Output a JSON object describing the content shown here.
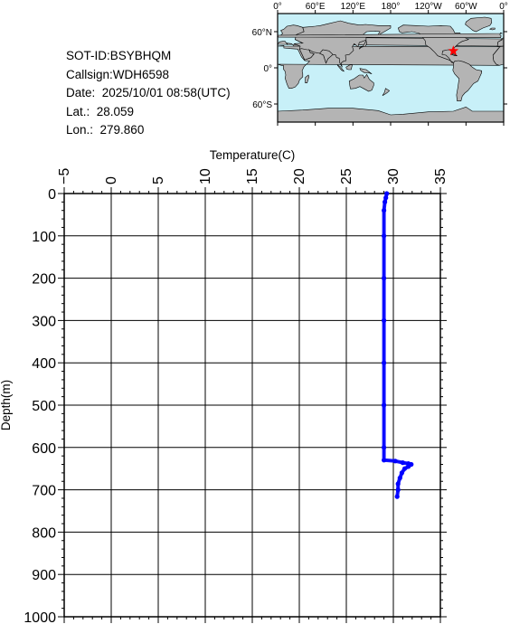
{
  "info": {
    "sot_id": "SOT-ID:BSYBHQM",
    "callsign": "Callsign:WDH6598",
    "date": "Date:  2025/10/01 08:58(UTC)",
    "lat": "Lat.:  28.059",
    "lon": "Lon.:  279.860"
  },
  "map": {
    "lon_labels": [
      "0°",
      "60°E",
      "120°E",
      "180°",
      "120°W",
      "60°W",
      "0°"
    ],
    "lat_labels": [
      "60°N",
      "0°",
      "60°S"
    ],
    "marker": {
      "lat": 28.059,
      "lon": 279.86
    },
    "colors": {
      "ocean": "#c8f0f8",
      "land": "#b4b4b4",
      "marker": "#ff0000"
    }
  },
  "chart_data": {
    "type": "line",
    "xlabel": "Temperature(C)",
    "ylabel": "Depth(m)",
    "xlim": [
      -5,
      35
    ],
    "ylim": [
      0,
      1000
    ],
    "y_inverted": true,
    "x_ticks": [
      -5,
      0,
      5,
      10,
      15,
      20,
      25,
      30,
      35
    ],
    "y_ticks": [
      0,
      100,
      200,
      300,
      400,
      500,
      600,
      700,
      800,
      900,
      1000
    ],
    "grid": true,
    "series": [
      {
        "color": "#0000ff",
        "points": [
          [
            29.3,
            0
          ],
          [
            29.2,
            10
          ],
          [
            29.1,
            20
          ],
          [
            29.0,
            40
          ],
          [
            29.0,
            100
          ],
          [
            29.0,
            200
          ],
          [
            29.0,
            300
          ],
          [
            29.0,
            400
          ],
          [
            29.0,
            500
          ],
          [
            29.0,
            600
          ],
          [
            29.0,
            630
          ],
          [
            30.2,
            632
          ],
          [
            31.0,
            636
          ],
          [
            31.6,
            638
          ],
          [
            31.9,
            640
          ],
          [
            31.6,
            645
          ],
          [
            31.2,
            650
          ],
          [
            30.9,
            660
          ],
          [
            30.7,
            672
          ],
          [
            30.5,
            686
          ],
          [
            30.5,
            700
          ],
          [
            30.4,
            716
          ]
        ]
      }
    ]
  }
}
